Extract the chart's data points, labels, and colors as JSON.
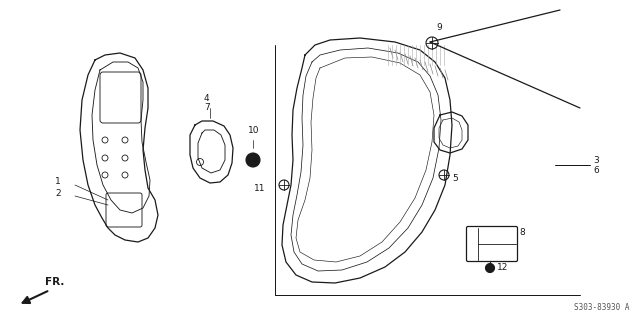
{
  "bg_color": "#ffffff",
  "line_color": "#1a1a1a",
  "fig_width": 6.4,
  "fig_height": 3.2,
  "dpi": 100,
  "diagram_code": "S303-83930 A",
  "fr_label": "FR.",
  "label_fs": 6.5
}
